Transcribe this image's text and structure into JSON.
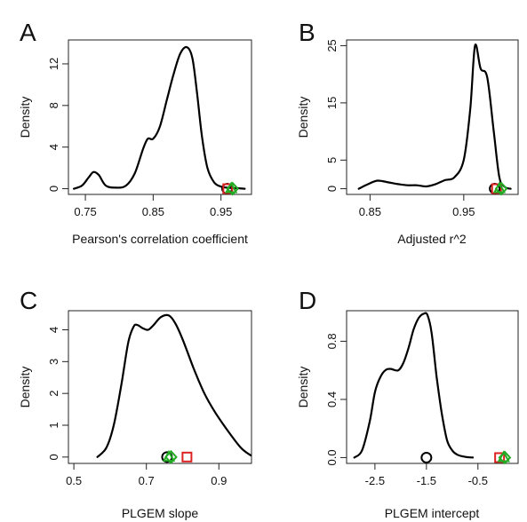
{
  "chart_data": [
    {
      "type": "line",
      "panel": "A",
      "xlabel": "Pearson's correlation coefficient",
      "ylabel": "Density",
      "xlim": [
        0.725,
        0.995
      ],
      "ylim": [
        -0.55,
        14.3
      ],
      "xticks": [
        0.75,
        0.85,
        0.95
      ],
      "xtick_labels": [
        "0.75",
        "0.85",
        "0.95"
      ],
      "yticks": [
        0,
        4,
        8,
        12
      ],
      "ytick_labels": [
        "0",
        "4",
        "8",
        "12"
      ],
      "series": [
        {
          "x": [
            0.733,
            0.745,
            0.755,
            0.762,
            0.77,
            0.78,
            0.795,
            0.81,
            0.823,
            0.835,
            0.842,
            0.85,
            0.86,
            0.87,
            0.88,
            0.89,
            0.9,
            0.908,
            0.915,
            0.922,
            0.93,
            0.94,
            0.95,
            0.96,
            0.975,
            0.985
          ],
          "y": [
            0.0,
            0.3,
            1.1,
            1.6,
            1.3,
            0.3,
            0.1,
            0.3,
            1.5,
            3.8,
            4.8,
            4.8,
            6.0,
            8.5,
            11.0,
            13.0,
            13.6,
            12.5,
            9.0,
            5.0,
            2.0,
            0.6,
            0.2,
            0.1,
            0.05,
            0.0
          ]
        }
      ],
      "markers": [
        {
          "shape": "circle",
          "color": "#000000",
          "x": 0.959,
          "y": 0
        },
        {
          "shape": "square",
          "color": "#dd2222",
          "x": 0.96,
          "y": 0
        },
        {
          "shape": "triangle",
          "color": "#22aa22",
          "x": 0.965,
          "y": 0
        },
        {
          "shape": "diamond",
          "color": "#22aa22",
          "x": 0.967,
          "y": 0
        }
      ]
    },
    {
      "type": "line",
      "panel": "B",
      "xlabel": "Adjusted r^2",
      "ylabel": "Density",
      "xlim": [
        0.825,
        1.008
      ],
      "ylim": [
        -1.0,
        26.0
      ],
      "xticks": [
        0.85,
        0.95
      ],
      "xtick_labels": [
        "0.85",
        "0.95"
      ],
      "yticks": [
        0,
        5,
        15,
        25
      ],
      "ytick_labels": [
        "0",
        "5",
        "15",
        "25"
      ],
      "series": [
        {
          "x": [
            0.838,
            0.848,
            0.858,
            0.87,
            0.88,
            0.89,
            0.9,
            0.91,
            0.92,
            0.93,
            0.94,
            0.95,
            0.957,
            0.962,
            0.968,
            0.975,
            0.982,
            0.988,
            0.994,
            1.0
          ],
          "y": [
            0.0,
            0.8,
            1.4,
            1.1,
            0.8,
            0.6,
            0.6,
            0.4,
            0.8,
            1.5,
            2.0,
            5.0,
            14.0,
            25.0,
            21.0,
            19.5,
            10.0,
            2.0,
            0.3,
            0.0
          ]
        }
      ],
      "markers": [
        {
          "shape": "circle",
          "color": "#000000",
          "x": 0.983,
          "y": 0
        },
        {
          "shape": "square",
          "color": "#dd2222",
          "x": 0.985,
          "y": 0
        },
        {
          "shape": "triangle",
          "color": "#22aa22",
          "x": 0.988,
          "y": 0
        },
        {
          "shape": "diamond",
          "color": "#22aa22",
          "x": 0.99,
          "y": 0
        }
      ]
    },
    {
      "type": "line",
      "panel": "C",
      "xlabel": "PLGEM slope",
      "ylabel": "Density",
      "xlim": [
        0.485,
        0.99
      ],
      "ylim": [
        -0.2,
        4.6
      ],
      "xticks": [
        0.5,
        0.7,
        0.9
      ],
      "xtick_labels": [
        "0.5",
        "0.7",
        "0.9"
      ],
      "yticks": [
        0,
        1,
        2,
        3,
        4
      ],
      "ytick_labels": [
        "0",
        "1",
        "2",
        "3",
        "4"
      ],
      "series": [
        {
          "x": [
            0.565,
            0.59,
            0.61,
            0.63,
            0.65,
            0.665,
            0.675,
            0.69,
            0.705,
            0.72,
            0.74,
            0.762,
            0.78,
            0.8,
            0.83,
            0.86,
            0.89,
            0.92,
            0.96,
            0.988
          ],
          "y": [
            0.0,
            0.3,
            1.0,
            2.2,
            3.6,
            4.1,
            4.15,
            4.05,
            4.0,
            4.15,
            4.4,
            4.45,
            4.2,
            3.7,
            2.8,
            2.0,
            1.4,
            0.9,
            0.3,
            0.05
          ]
        }
      ],
      "markers": [
        {
          "shape": "circle",
          "color": "#000000",
          "x": 0.757,
          "y": 0
        },
        {
          "shape": "triangle",
          "color": "#22aa22",
          "x": 0.762,
          "y": 0
        },
        {
          "shape": "diamond",
          "color": "#22aa22",
          "x": 0.768,
          "y": 0
        },
        {
          "shape": "square",
          "color": "#dd2222",
          "x": 0.812,
          "y": 0
        }
      ]
    },
    {
      "type": "line",
      "panel": "D",
      "xlabel": "PLGEM intercept",
      "ylabel": "Density",
      "xlim": [
        -3.05,
        0.28
      ],
      "ylim": [
        -0.04,
        1.01
      ],
      "xticks": [
        -2.5,
        -1.5,
        -0.5
      ],
      "xtick_labels": [
        "-2.5",
        "-1.5",
        "-0.5"
      ],
      "yticks": [
        0.0,
        0.4,
        0.8
      ],
      "ytick_labels": [
        "0.0",
        "0.4",
        "0.8"
      ],
      "series": [
        {
          "x": [
            -2.9,
            -2.75,
            -2.6,
            -2.5,
            -2.4,
            -2.3,
            -2.2,
            -2.05,
            -1.95,
            -1.85,
            -1.75,
            -1.65,
            -1.55,
            -1.48,
            -1.4,
            -1.3,
            -1.2,
            -1.1,
            -1.0,
            -0.9,
            -0.75,
            -0.6
          ],
          "y": [
            0.0,
            0.05,
            0.25,
            0.45,
            0.55,
            0.6,
            0.61,
            0.6,
            0.65,
            0.75,
            0.88,
            0.96,
            0.99,
            0.98,
            0.86,
            0.55,
            0.3,
            0.12,
            0.05,
            0.02,
            0.005,
            0.0
          ]
        }
      ],
      "markers": [
        {
          "shape": "circle",
          "color": "#000000",
          "x": -1.5,
          "y": 0
        },
        {
          "shape": "square",
          "color": "#dd2222",
          "x": -0.08,
          "y": 0
        },
        {
          "shape": "triangle",
          "color": "#22aa22",
          "x": 0.0,
          "y": 0
        },
        {
          "shape": "diamond",
          "color": "#22aa22",
          "x": 0.02,
          "y": 0
        }
      ]
    }
  ]
}
